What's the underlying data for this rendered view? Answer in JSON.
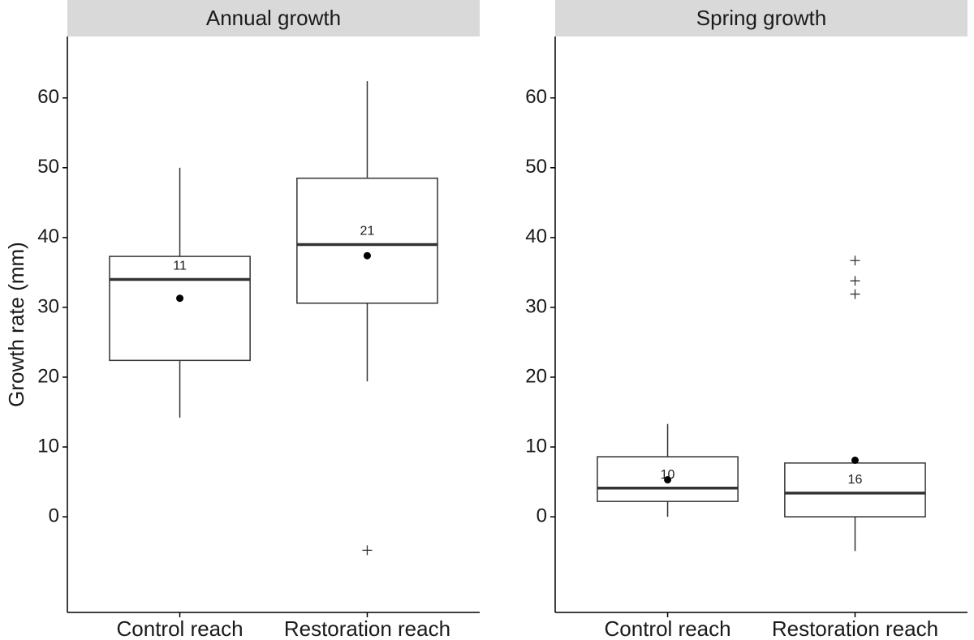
{
  "chart_data": [
    {
      "type": "box",
      "title": "Annual growth",
      "ylabel": "Growth rate (mm)",
      "categories": [
        "Control reach",
        "Restoration reach"
      ],
      "boxes": [
        {
          "whislo": 14.2,
          "q1": 22.4,
          "med": 34.0,
          "q3": 37.3,
          "whishi": 50.0,
          "mean": 31.3,
          "n": 11,
          "outliers": []
        },
        {
          "whislo": 19.4,
          "q1": 30.6,
          "med": 39.0,
          "q3": 48.5,
          "whishi": 62.4,
          "mean": 37.4,
          "n": 21,
          "outliers": [
            -4.8
          ]
        }
      ],
      "ylim": [
        -13.7,
        68.8
      ],
      "yticks": [
        0,
        10,
        20,
        30,
        40,
        50,
        60
      ],
      "color": "#333333"
    },
    {
      "type": "box",
      "title": "Spring growth",
      "categories": [
        "Control reach",
        "Restoration reach"
      ],
      "boxes": [
        {
          "whislo": 0,
          "q1": 2.2,
          "med": 4.1,
          "q3": 8.6,
          "whishi": 13.3,
          "mean": 5.3,
          "n": 10,
          "outliers": []
        },
        {
          "whislo": -4.9,
          "q1": 0,
          "med": 3.4,
          "q3": 7.7,
          "whishi": 7.7,
          "mean": 8.1,
          "n": 16,
          "outliers": [
            36.7,
            33.8,
            31.9
          ]
        }
      ],
      "ylim": [
        -13.7,
        68.8
      ],
      "yticks": [
        0,
        10,
        20,
        30,
        40,
        50,
        60
      ],
      "color": "#333333"
    }
  ]
}
